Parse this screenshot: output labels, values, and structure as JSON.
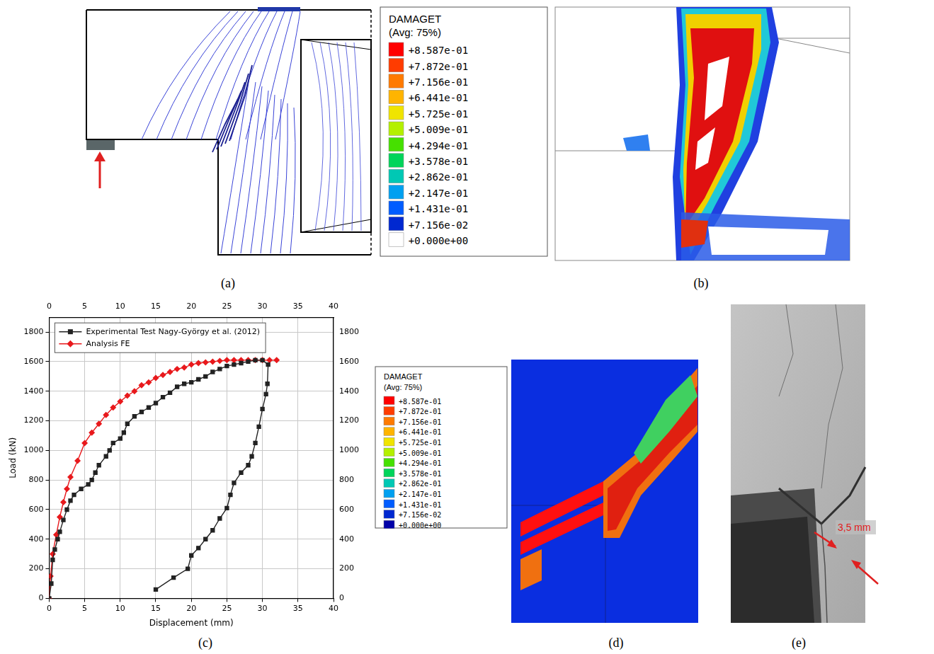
{
  "panels": [
    {
      "label": "(a)"
    },
    {
      "label": "(b)"
    },
    {
      "label": "(c)"
    },
    {
      "label": "(d)"
    },
    {
      "label": "(e)",
      "annotation": "3,5 mm"
    }
  ],
  "color_bar": {
    "title": "DAMAGET",
    "subtitle": "(Avg: 75%)",
    "ticks": [
      {
        "value": 0.8587,
        "label": "+8.587e-01"
      },
      {
        "value": 0.7872,
        "label": "+7.872e-01"
      },
      {
        "value": 0.7156,
        "label": "+7.156e-01"
      },
      {
        "value": 0.6441,
        "label": "+6.441e-01"
      },
      {
        "value": 0.5725,
        "label": "+5.725e-01"
      },
      {
        "value": 0.5009,
        "label": "+5.009e-01"
      },
      {
        "value": 0.4294,
        "label": "+4.294e-01"
      },
      {
        "value": 0.3578,
        "label": "+3.578e-01"
      },
      {
        "value": 0.2862,
        "label": "+2.862e-01"
      },
      {
        "value": 0.2147,
        "label": "+2.147e-01"
      },
      {
        "value": 0.1431,
        "label": "+1.431e-01"
      },
      {
        "value": 0.07156,
        "label": "+7.156e-02"
      },
      {
        "value": 0,
        "label": "+0.000e+00"
      }
    ]
  },
  "chart_data": {
    "type": "line",
    "x_label": "Displacement (mm)",
    "y_label": "Load (kN)",
    "xlim": [
      0,
      40
    ],
    "xticks": [
      0,
      5,
      10,
      15,
      20,
      25,
      30,
      35,
      40
    ],
    "ylim": [
      0,
      1900
    ],
    "yticks": [
      0,
      200,
      400,
      600,
      800,
      1000,
      1200,
      1400,
      1600,
      1800
    ],
    "grid": true,
    "legend": "upper left",
    "series": [
      {
        "name": "Experimental Test Nagy-György et al. (2012)",
        "color": "#222222",
        "marker": "square",
        "x": [
          0,
          0.3,
          0.5,
          0.8,
          1.2,
          1.5,
          2,
          2.5,
          3,
          3.5,
          4.5,
          5.5,
          6,
          6.5,
          7,
          8,
          8.5,
          9,
          10,
          10.5,
          11,
          12,
          13,
          14,
          15,
          16,
          17,
          18,
          19,
          20,
          21,
          22,
          23,
          24,
          25,
          26,
          27,
          28,
          29,
          30,
          30.8,
          30.7,
          30.5,
          30,
          29.5,
          29,
          28.5,
          28,
          27,
          26,
          25.5,
          25,
          24,
          23,
          22,
          21,
          20,
          19.5,
          17.5,
          15
        ],
        "values": [
          0,
          100,
          260,
          330,
          400,
          450,
          530,
          600,
          660,
          700,
          740,
          770,
          800,
          850,
          900,
          960,
          1000,
          1050,
          1080,
          1120,
          1180,
          1230,
          1260,
          1290,
          1320,
          1360,
          1390,
          1430,
          1450,
          1460,
          1480,
          1500,
          1530,
          1550,
          1570,
          1580,
          1590,
          1600,
          1610,
          1610,
          1580,
          1450,
          1380,
          1280,
          1160,
          1050,
          960,
          900,
          850,
          780,
          700,
          610,
          540,
          460,
          400,
          340,
          290,
          200,
          140,
          60
        ]
      },
      {
        "name": "Analysis FE",
        "color": "#e8191c",
        "marker": "diamond",
        "x": [
          0,
          0.2,
          0.5,
          1,
          1.5,
          2,
          2.5,
          3,
          4,
          5,
          6,
          7,
          8,
          9,
          10,
          11,
          12,
          13,
          14,
          15,
          16,
          17,
          18,
          19,
          20,
          21,
          22,
          23,
          24,
          25,
          26,
          27,
          28,
          29,
          30,
          31,
          32
        ],
        "values": [
          0,
          150,
          300,
          430,
          550,
          650,
          740,
          820,
          930,
          1050,
          1120,
          1180,
          1240,
          1290,
          1330,
          1370,
          1400,
          1440,
          1460,
          1490,
          1510,
          1530,
          1550,
          1560,
          1580,
          1590,
          1595,
          1600,
          1605,
          1610,
          1610,
          1610,
          1610,
          1610,
          1610,
          1610,
          1610
        ]
      }
    ]
  }
}
